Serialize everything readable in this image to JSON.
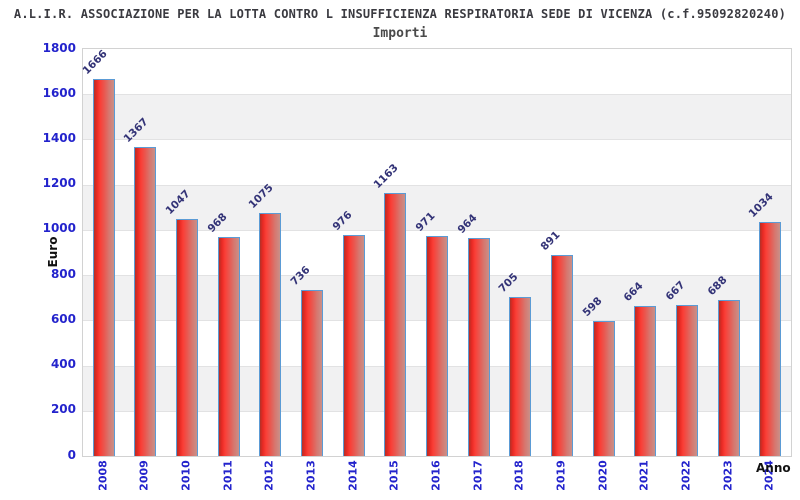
{
  "header": {
    "title": "A.L.I.R. ASSOCIAZIONE PER LA LOTTA CONTRO L INSUFFICIENZA RESPIRATORIA SEDE DI VICENZA (c.f.95092820240)",
    "subtitle": "Importi"
  },
  "chart_data": {
    "type": "bar",
    "title": "Importi",
    "categories": [
      "2008",
      "2009",
      "2010",
      "2011",
      "2012",
      "2013",
      "2014",
      "2015",
      "2016",
      "2017",
      "2018",
      "2019",
      "2020",
      "2021",
      "2022",
      "2023",
      "2024"
    ],
    "values": [
      1666,
      1367,
      1047,
      968,
      1075,
      736,
      976,
      1163,
      971,
      964,
      705,
      891,
      598,
      664,
      667,
      688,
      1034
    ],
    "xlabel": "Anno",
    "ylabel": "Euro",
    "ylim": [
      0,
      1800
    ],
    "ytick_step": 200,
    "yticks": [
      0,
      200,
      400,
      600,
      800,
      1000,
      1200,
      1400,
      1600,
      1800
    ],
    "grid": "horizontal-bands-alternating",
    "legend": "none",
    "colors": {
      "title_text": "#3a3a40",
      "subtitle_text": "#4a4a4a",
      "axis_tick_text": "#2323cc",
      "value_label_text": "#333377",
      "bar_border": "#5b9bd5",
      "bar_gradient": [
        "#b23028",
        "#e82a23",
        "#fa3e36",
        "#ea564e",
        "#d6776f",
        "#c99089"
      ],
      "band_gray": "#f1f1f2",
      "band_white": "#ffffff",
      "plot_border": "#d2d2d2",
      "grid_line": "#e2e2e3"
    }
  }
}
